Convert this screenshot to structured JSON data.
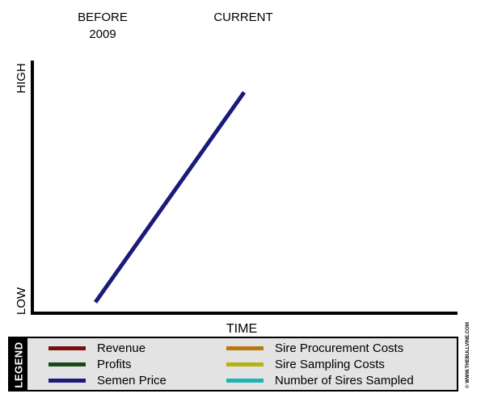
{
  "chart_data": {
    "type": "line",
    "title": "",
    "xlabel": "TIME",
    "ylabel_high": "HIGH",
    "ylabel_low": "LOW",
    "x_labels": [
      {
        "key": "before",
        "lines": [
          "BEFORE",
          "2009"
        ]
      },
      {
        "key": "current",
        "lines": [
          "CURRENT"
        ]
      }
    ],
    "series": [
      {
        "name": "Semen Price",
        "color": "#1a1a7a",
        "points": [
          {
            "x": "BEFORE 2009",
            "y": 0.04
          },
          {
            "x": "CURRENT",
            "y": 0.94
          }
        ]
      }
    ],
    "ylim": [
      0,
      1
    ],
    "grid": false
  },
  "legend": {
    "title": "LEGEND",
    "items": [
      {
        "label": "Revenue",
        "color": "#7a0f0f"
      },
      {
        "label": "Profits",
        "color": "#174a17"
      },
      {
        "label": "Semen Price",
        "color": "#1a1a7a"
      },
      {
        "label": "Sire Procurement Costs",
        "color": "#b87a0f"
      },
      {
        "label": "Sire Sampling Costs",
        "color": "#b3b312"
      },
      {
        "label": "Number of Sires Sampled",
        "color": "#1fb3b3"
      }
    ]
  },
  "watermark": "© WWW.THEBULLVINE.COM"
}
